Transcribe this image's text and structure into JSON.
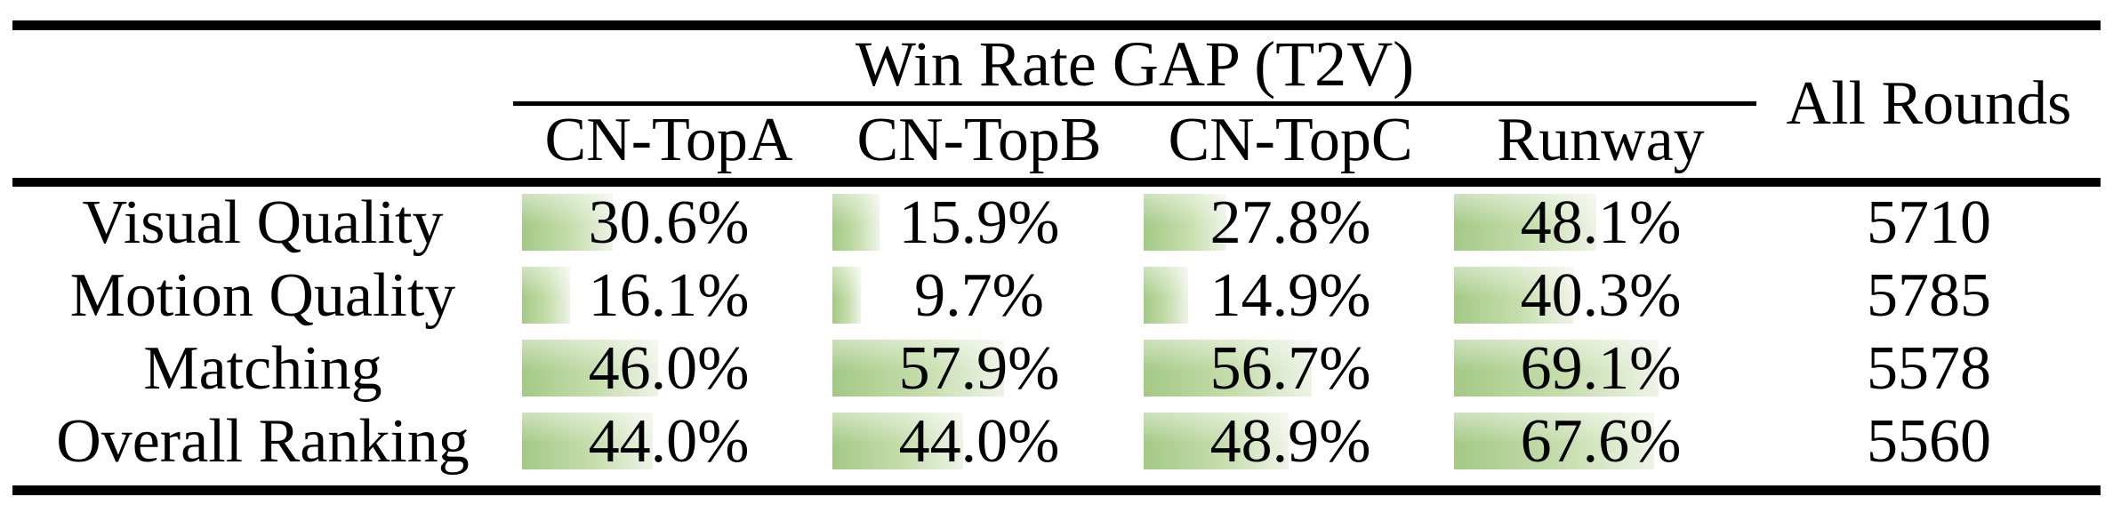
{
  "table": {
    "group_header": "Win Rate GAP (T2V)",
    "all_rounds_header": "All Rounds",
    "model_columns": [
      "CN-TopA",
      "CN-TopB",
      "CN-TopC",
      "Runway"
    ],
    "rows": [
      {
        "label": "Visual Quality",
        "cells": [
          {
            "text": "30.6%",
            "value": 30.6
          },
          {
            "text": "15.9%",
            "value": 15.9
          },
          {
            "text": "27.8%",
            "value": 27.8
          },
          {
            "text": "48.1%",
            "value": 48.1
          }
        ],
        "all_rounds": "5710"
      },
      {
        "label": "Motion Quality",
        "cells": [
          {
            "text": "16.1%",
            "value": 16.1
          },
          {
            "text": "9.7%",
            "value": 9.7
          },
          {
            "text": "14.9%",
            "value": 14.9
          },
          {
            "text": "40.3%",
            "value": 40.3
          }
        ],
        "all_rounds": "5785"
      },
      {
        "label": "Matching",
        "cells": [
          {
            "text": "46.0%",
            "value": 46.0
          },
          {
            "text": "57.9%",
            "value": 57.9
          },
          {
            "text": "56.7%",
            "value": 56.7
          },
          {
            "text": "69.1%",
            "value": 69.1
          }
        ],
        "all_rounds": "5578"
      },
      {
        "label": "Overall Ranking",
        "cells": [
          {
            "text": "44.0%",
            "value": 44.0
          },
          {
            "text": "44.0%",
            "value": 44.0
          },
          {
            "text": "48.9%",
            "value": 48.9
          },
          {
            "text": "67.6%",
            "value": 67.6
          }
        ],
        "all_rounds": "5560"
      }
    ]
  },
  "colors": {
    "bar_green": "#a3c985",
    "bar_green_mid": "#c6dead",
    "bar_fade_end": "#eef3e6",
    "rule": "#000000",
    "background": "#ffffff",
    "text": "#000000"
  },
  "chart_data": {
    "type": "table",
    "title": "Win Rate GAP (T2V)",
    "columns": [
      "CN-TopA",
      "CN-TopB",
      "CN-TopC",
      "Runway",
      "All Rounds"
    ],
    "categories": [
      "Visual Quality",
      "Motion Quality",
      "Matching",
      "Overall Ranking"
    ],
    "series": [
      {
        "name": "CN-TopA",
        "values": [
          30.6,
          16.1,
          46.0,
          44.0
        ]
      },
      {
        "name": "CN-TopB",
        "values": [
          15.9,
          9.7,
          57.9,
          44.0
        ]
      },
      {
        "name": "CN-TopC",
        "values": [
          27.8,
          14.9,
          56.7,
          48.9
        ]
      },
      {
        "name": "Runway",
        "values": [
          48.1,
          40.3,
          69.1,
          67.6
        ]
      }
    ],
    "all_rounds": [
      5710,
      5785,
      5578,
      5560
    ],
    "unit": "%",
    "value_range": [
      0,
      100
    ],
    "style_note": "in-cell green gradient data bars, bar length proportional to percent value"
  }
}
